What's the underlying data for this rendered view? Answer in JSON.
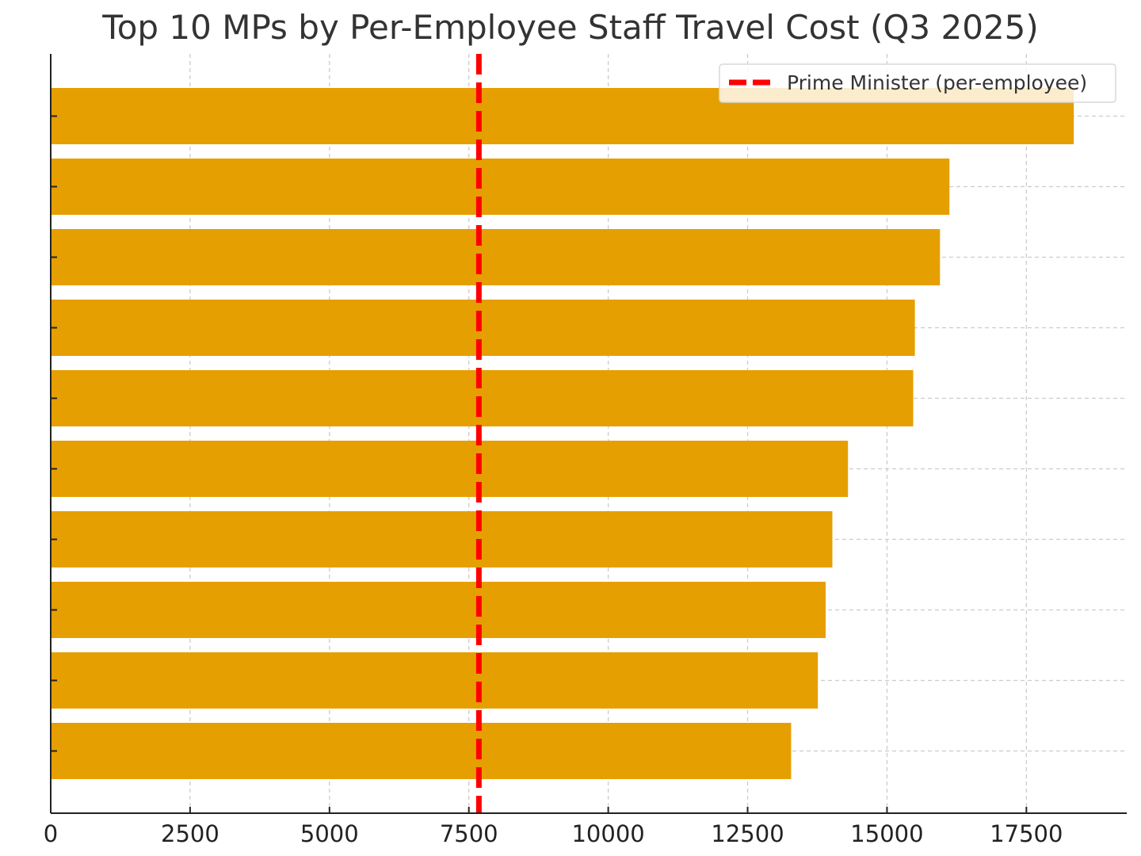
{
  "chart_data": {
    "type": "bar",
    "orientation": "horizontal",
    "title": "Top 10 MPs by Per-Employee Staff Travel Cost (Q3 2025)",
    "xlabel": "",
    "ylabel": "",
    "xlim": [
      0,
      19300
    ],
    "xticks": [
      0,
      2500,
      5000,
      7500,
      10000,
      12500,
      15000,
      17500
    ],
    "xtick_labels": [
      "0",
      "2500",
      "5000",
      "7500",
      "10000",
      "12500",
      "15000",
      "17500"
    ],
    "values": [
      18350,
      16120,
      15950,
      15500,
      15470,
      14300,
      14020,
      13900,
      13760,
      13280
    ],
    "bar_color": "#E69F00",
    "grid": true,
    "reference_line": {
      "label": "Prime Minister (per-employee)",
      "value": 7680,
      "color": "#FF0000",
      "style": "dashed"
    },
    "legend": {
      "position": "top-right",
      "entries": [
        "Prime Minister (per-employee)"
      ]
    }
  }
}
